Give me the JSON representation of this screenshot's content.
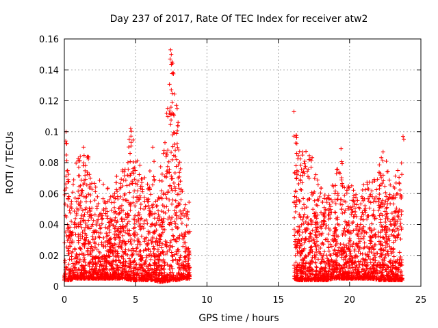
{
  "chart_data": {
    "type": "scatter",
    "title": "Day 237 of 2017, Rate Of TEC Index for receiver atw2",
    "xlabel": "GPS time / hours",
    "ylabel": "ROTI / TECUs",
    "xlim": [
      0,
      25
    ],
    "ylim": [
      0,
      0.16
    ],
    "xticks": [
      0,
      5,
      10,
      15,
      20,
      25
    ],
    "yticks": [
      0,
      0.02,
      0.04,
      0.06,
      0.08,
      0.1,
      0.12,
      0.14,
      0.16
    ],
    "xtick_labels": [
      "0",
      "5",
      "10",
      "15",
      "20",
      "25"
    ],
    "ytick_labels": [
      "0",
      "0.02",
      "0.04",
      "0.06",
      "0.08",
      "0.1",
      "0.12",
      "0.14",
      "0.16"
    ],
    "grid": true,
    "marker": "+",
    "color": "#ff0000",
    "series_envelope": [
      {
        "x": 0.0,
        "y_min": 0.004,
        "y_max": 0.06
      },
      {
        "x": 0.1,
        "y_min": 0.004,
        "y_max": 0.1
      },
      {
        "x": 0.4,
        "y_min": 0.004,
        "y_max": 0.065
      },
      {
        "x": 0.8,
        "y_min": 0.005,
        "y_max": 0.08
      },
      {
        "x": 1.3,
        "y_min": 0.005,
        "y_max": 0.09
      },
      {
        "x": 1.7,
        "y_min": 0.005,
        "y_max": 0.084
      },
      {
        "x": 2.2,
        "y_min": 0.005,
        "y_max": 0.065
      },
      {
        "x": 2.6,
        "y_min": 0.005,
        "y_max": 0.071
      },
      {
        "x": 3.2,
        "y_min": 0.005,
        "y_max": 0.062
      },
      {
        "x": 3.7,
        "y_min": 0.005,
        "y_max": 0.075
      },
      {
        "x": 4.2,
        "y_min": 0.005,
        "y_max": 0.082
      },
      {
        "x": 4.7,
        "y_min": 0.004,
        "y_max": 0.102
      },
      {
        "x": 5.0,
        "y_min": 0.004,
        "y_max": 0.085
      },
      {
        "x": 5.4,
        "y_min": 0.004,
        "y_max": 0.078
      },
      {
        "x": 5.8,
        "y_min": 0.004,
        "y_max": 0.065
      },
      {
        "x": 6.2,
        "y_min": 0.004,
        "y_max": 0.09
      },
      {
        "x": 6.6,
        "y_min": 0.003,
        "y_max": 0.07
      },
      {
        "x": 7.0,
        "y_min": 0.003,
        "y_max": 0.09
      },
      {
        "x": 7.5,
        "y_min": 0.004,
        "y_max": 0.153
      },
      {
        "x": 7.9,
        "y_min": 0.004,
        "y_max": 0.117
      },
      {
        "x": 8.3,
        "y_min": 0.005,
        "y_max": 0.06
      },
      {
        "x": 8.8,
        "y_min": 0.005,
        "y_max": 0.055
      },
      {
        "x": 16.1,
        "y_min": 0.005,
        "y_max": 0.113
      },
      {
        "x": 16.4,
        "y_min": 0.004,
        "y_max": 0.087
      },
      {
        "x": 16.9,
        "y_min": 0.004,
        "y_max": 0.09
      },
      {
        "x": 17.4,
        "y_min": 0.004,
        "y_max": 0.083
      },
      {
        "x": 17.9,
        "y_min": 0.004,
        "y_max": 0.065
      },
      {
        "x": 18.4,
        "y_min": 0.004,
        "y_max": 0.06
      },
      {
        "x": 18.9,
        "y_min": 0.005,
        "y_max": 0.07
      },
      {
        "x": 19.4,
        "y_min": 0.005,
        "y_max": 0.089
      },
      {
        "x": 19.7,
        "y_min": 0.005,
        "y_max": 0.06
      },
      {
        "x": 20.1,
        "y_min": 0.005,
        "y_max": 0.072
      },
      {
        "x": 20.6,
        "y_min": 0.005,
        "y_max": 0.055
      },
      {
        "x": 21.1,
        "y_min": 0.005,
        "y_max": 0.07
      },
      {
        "x": 21.6,
        "y_min": 0.005,
        "y_max": 0.068
      },
      {
        "x": 22.1,
        "y_min": 0.004,
        "y_max": 0.08
      },
      {
        "x": 22.4,
        "y_min": 0.004,
        "y_max": 0.088
      },
      {
        "x": 22.9,
        "y_min": 0.004,
        "y_max": 0.07
      },
      {
        "x": 23.3,
        "y_min": 0.004,
        "y_max": 0.072
      },
      {
        "x": 23.7,
        "y_min": 0.004,
        "y_max": 0.097
      }
    ],
    "outliers": [
      {
        "x": 7.45,
        "y": 0.153
      },
      {
        "x": 7.5,
        "y": 0.15
      },
      {
        "x": 7.42,
        "y": 0.147
      },
      {
        "x": 7.55,
        "y": 0.145
      },
      {
        "x": 7.5,
        "y": 0.127
      },
      {
        "x": 7.85,
        "y": 0.117
      },
      {
        "x": 7.6,
        "y": 0.112
      },
      {
        "x": 7.95,
        "y": 0.104
      },
      {
        "x": 0.12,
        "y": 0.1
      },
      {
        "x": 0.1,
        "y": 0.094
      },
      {
        "x": 4.65,
        "y": 0.102
      },
      {
        "x": 4.55,
        "y": 0.095
      },
      {
        "x": 16.1,
        "y": 0.113
      },
      {
        "x": 19.4,
        "y": 0.089
      },
      {
        "x": 23.75,
        "y": 0.097
      },
      {
        "x": 23.8,
        "y": 0.095
      },
      {
        "x": 1.35,
        "y": 0.09
      },
      {
        "x": 1.65,
        "y": 0.084
      },
      {
        "x": 6.2,
        "y": 0.09
      },
      {
        "x": 22.35,
        "y": 0.087
      }
    ]
  }
}
